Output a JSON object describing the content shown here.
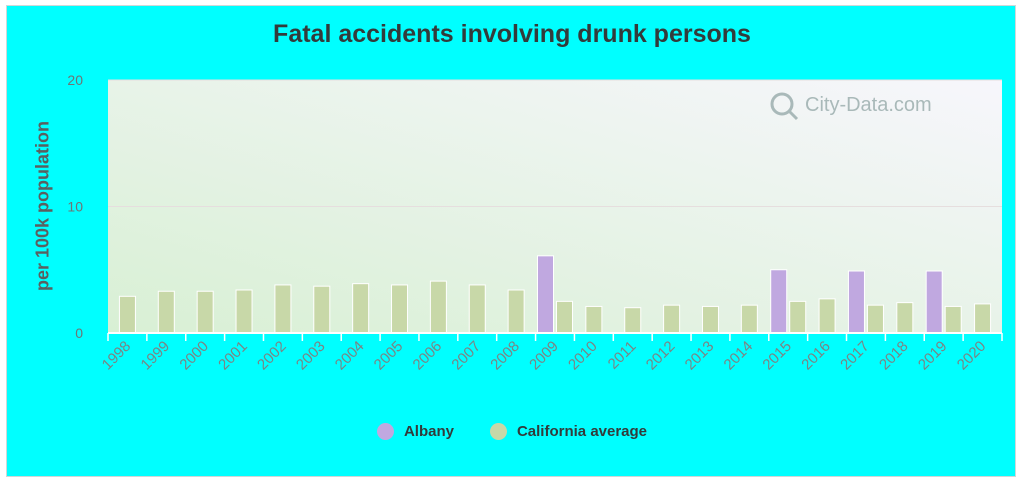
{
  "chart_data": {
    "type": "bar",
    "title": "Fatal accidents involving drunk persons",
    "xlabel": "",
    "ylabel": "per 100k population",
    "ylim": [
      0,
      20
    ],
    "yticks": [
      "0",
      "10",
      "20"
    ],
    "categories": [
      "1998",
      "1999",
      "2000",
      "2001",
      "2002",
      "2003",
      "2004",
      "2005",
      "2006",
      "2007",
      "2008",
      "2009",
      "2010",
      "2011",
      "2012",
      "2013",
      "2014",
      "2015",
      "2016",
      "2017",
      "2018",
      "2019",
      "2020"
    ],
    "series": [
      {
        "name": "Albany",
        "color": "#c0a8e0",
        "values": [
          null,
          null,
          null,
          null,
          null,
          null,
          null,
          null,
          null,
          null,
          null,
          6.1,
          null,
          null,
          null,
          null,
          null,
          5.0,
          null,
          4.9,
          null,
          4.9,
          null
        ]
      },
      {
        "name": "California average",
        "color": "#c8d8a8",
        "values": [
          2.9,
          3.3,
          3.3,
          3.4,
          3.8,
          3.7,
          3.9,
          3.8,
          4.1,
          3.8,
          3.4,
          2.5,
          2.1,
          2.0,
          2.2,
          2.1,
          2.2,
          2.5,
          2.7,
          2.2,
          2.4,
          2.1,
          2.3
        ]
      }
    ],
    "grid": true,
    "legend_position": "bottom"
  },
  "watermark": "City-Data.com"
}
